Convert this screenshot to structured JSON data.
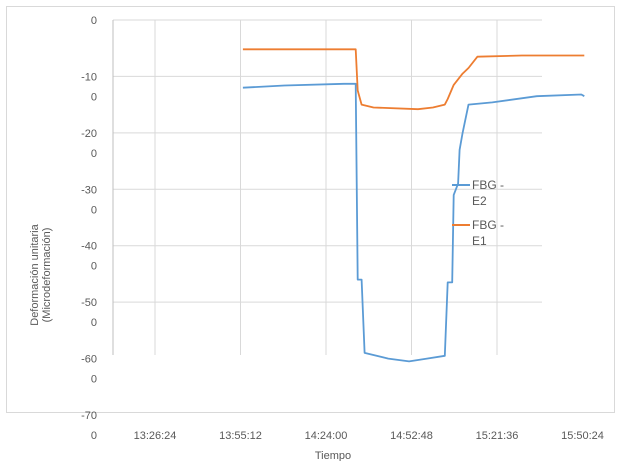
{
  "chart_data": {
    "type": "line",
    "xlabel": "Tiempo",
    "ylabel_lines": [
      "Deformación unitaria",
      "(Microdeformación)"
    ],
    "x_tick_labels": [
      "13:26:24",
      "13:55:12",
      "14:24:00",
      "14:52:48",
      "15:21:36",
      "15:50:24"
    ],
    "y_tick_labels": [
      "0",
      "-10\n0",
      "-20\n0",
      "-30\n0",
      "-40\n0",
      "-50\n0",
      "-60\n0",
      "-70\n0"
    ],
    "y_tick_values": [
      0,
      -100,
      -200,
      -300,
      -400,
      -500,
      -600,
      -700
    ],
    "ylim": [
      -700,
      0
    ],
    "grid": true,
    "legend_position": "right",
    "series": [
      {
        "name": "FBG - E2",
        "legend_lines": [
          "FBG -",
          "E2"
        ],
        "color": "#5b9bd5",
        "points": [
          [
            "13:56:00",
            -120
          ],
          [
            "14:10:00",
            -116
          ],
          [
            "14:30:00",
            -113
          ],
          [
            "14:34:00",
            -113
          ],
          [
            "14:34:40",
            -460
          ],
          [
            "14:36:00",
            -460
          ],
          [
            "14:37:00",
            -590
          ],
          [
            "14:45:00",
            -600
          ],
          [
            "14:52:00",
            -605
          ],
          [
            "14:58:00",
            -600
          ],
          [
            "15:04:00",
            -595
          ],
          [
            "15:05:00",
            -465
          ],
          [
            "15:06:30",
            -465
          ],
          [
            "15:07:00",
            -310
          ],
          [
            "15:08:30",
            -290
          ],
          [
            "15:09:00",
            -230
          ],
          [
            "15:10:00",
            -200
          ],
          [
            "15:12:00",
            -150
          ],
          [
            "15:20:00",
            -146
          ],
          [
            "15:35:00",
            -135
          ],
          [
            "15:50:00",
            -132
          ],
          [
            "15:51:00",
            -135
          ]
        ]
      },
      {
        "name": "FBG - E1",
        "legend_lines": [
          "FBG -",
          "E1"
        ],
        "color": "#ed7d31",
        "points": [
          [
            "13:56:00",
            -52
          ],
          [
            "14:34:00",
            -52
          ],
          [
            "14:34:40",
            -125
          ],
          [
            "14:36:00",
            -150
          ],
          [
            "14:40:00",
            -155
          ],
          [
            "14:55:00",
            -158
          ],
          [
            "15:00:00",
            -155
          ],
          [
            "15:04:00",
            -150
          ],
          [
            "15:05:00",
            -140
          ],
          [
            "15:07:00",
            -115
          ],
          [
            "15:10:00",
            -95
          ],
          [
            "15:12:00",
            -85
          ],
          [
            "15:15:00",
            -65
          ],
          [
            "15:30:00",
            -63
          ],
          [
            "15:51:00",
            -63
          ]
        ]
      }
    ]
  }
}
